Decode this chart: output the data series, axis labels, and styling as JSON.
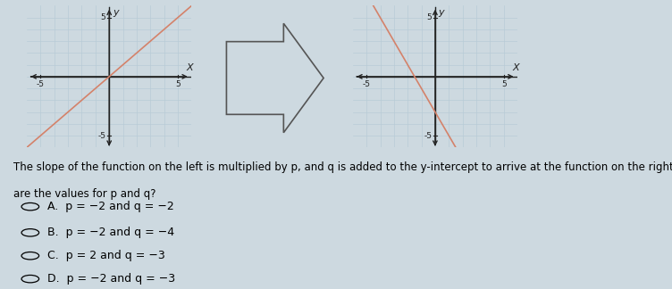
{
  "background_color": "#cdd9e0",
  "graph1": {
    "xlim": [
      -6,
      6
    ],
    "ylim": [
      -6,
      6
    ],
    "slope": 1.0,
    "intercept": 0,
    "line_color": "#d4826a",
    "line_width": 1.2
  },
  "graph2": {
    "xlim": [
      -6,
      6
    ],
    "ylim": [
      -6,
      6
    ],
    "slope": -2.0,
    "intercept": -3,
    "line_color": "#d4826a",
    "line_width": 1.2
  },
  "grid_color": "#b8ccd6",
  "axis_color": "#222222",
  "question_text_line1": "The slope of the function on the left is multiplied by p, and q is added to the y-intercept to arrive at the function on the right.  Which of the following",
  "question_text_line2": "are the values for p and q?",
  "choices": [
    [
      "A.",
      "p = −2 and q = −2"
    ],
    [
      "B.",
      "p = −2 and q = −4"
    ],
    [
      "C.",
      "p = 2 and q = −3"
    ],
    [
      "D.",
      "p = −2 and q = −3"
    ]
  ],
  "font_size_question": 8.5,
  "font_size_choices": 9.0,
  "axis_label_size": 8
}
